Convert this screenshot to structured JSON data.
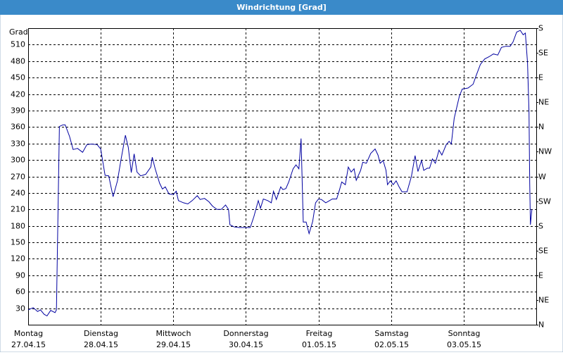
{
  "chart_data": {
    "type": "line",
    "title": "Windrichtung [Grad]",
    "y_label": "Grad",
    "color": "#0000a0",
    "grid": true,
    "x": [
      0,
      0.07,
      0.13,
      0.17,
      0.22,
      0.26,
      0.31,
      0.37,
      0.39,
      0.43,
      0.48,
      0.51,
      0.57,
      0.62,
      0.68,
      0.75,
      0.81,
      0.87,
      0.95,
      1.0,
      1.06,
      1.11,
      1.17,
      1.23,
      1.28,
      1.34,
      1.38,
      1.42,
      1.46,
      1.5,
      1.55,
      1.62,
      1.69,
      1.71,
      1.75,
      1.81,
      1.85,
      1.89,
      1.94,
      2.0,
      2.04,
      2.07,
      2.14,
      2.2,
      2.26,
      2.33,
      2.37,
      2.43,
      2.49,
      2.54,
      2.6,
      2.66,
      2.72,
      2.76,
      2.78,
      2.84,
      2.91,
      3.06,
      3.11,
      3.17,
      3.2,
      3.24,
      3.3,
      3.35,
      3.38,
      3.42,
      3.48,
      3.51,
      3.55,
      3.59,
      3.65,
      3.69,
      3.73,
      3.76,
      3.79,
      3.83,
      3.87,
      3.92,
      3.96,
      4.0,
      4.04,
      4.1,
      4.14,
      4.19,
      4.25,
      4.29,
      4.32,
      4.37,
      4.41,
      4.45,
      4.49,
      4.52,
      4.58,
      4.61,
      4.66,
      4.72,
      4.78,
      4.82,
      4.85,
      4.89,
      4.93,
      4.95,
      4.99,
      5.03,
      5.07,
      5.11,
      5.15,
      5.22,
      5.28,
      5.33,
      5.37,
      5.42,
      5.45,
      5.5,
      5.53,
      5.57,
      5.61,
      5.66,
      5.7,
      5.76,
      5.8,
      5.83,
      5.87,
      5.94,
      5.98,
      6.06,
      6.13,
      6.17,
      6.23,
      6.29,
      6.35,
      6.41,
      6.47,
      6.52,
      6.58,
      6.64,
      6.68,
      6.73,
      6.78,
      6.82,
      6.85,
      6.88,
      6.9,
      6.91,
      6.92,
      6.94
    ],
    "values": [
      27,
      31,
      24,
      27,
      19,
      16,
      26,
      22,
      27,
      361,
      364,
      364,
      343,
      319,
      321,
      314,
      328,
      329,
      328,
      320,
      272,
      271,
      233,
      262,
      301,
      345,
      323,
      277,
      311,
      278,
      271,
      274,
      287,
      305,
      284,
      258,
      247,
      251,
      238,
      237,
      243,
      226,
      222,
      220,
      226,
      235,
      228,
      230,
      224,
      216,
      210,
      210,
      218,
      210,
      182,
      178,
      177,
      177,
      197,
      226,
      212,
      229,
      226,
      222,
      243,
      228,
      251,
      246,
      248,
      260,
      284,
      291,
      284,
      339,
      187,
      187,
      166,
      188,
      222,
      229,
      228,
      222,
      225,
      229,
      229,
      246,
      260,
      255,
      287,
      278,
      284,
      263,
      281,
      296,
      294,
      312,
      320,
      309,
      294,
      299,
      281,
      255,
      262,
      255,
      262,
      251,
      242,
      242,
      270,
      308,
      279,
      299,
      281,
      285,
      285,
      302,
      294,
      318,
      309,
      328,
      334,
      329,
      376,
      416,
      429,
      431,
      438,
      453,
      474,
      484,
      488,
      493,
      491,
      505,
      507,
      507,
      515,
      533,
      536,
      528,
      531,
      477,
      387,
      258,
      182,
      210
    ],
    "xlim": [
      0,
      7
    ],
    "xticks": [
      {
        "value": 0,
        "label": "Montag"
      },
      {
        "value": 1,
        "label": "Dienstag"
      },
      {
        "value": 2,
        "label": "Mittwoch"
      },
      {
        "value": 3,
        "label": "Donnerstag"
      },
      {
        "value": 4,
        "label": "Freitag"
      },
      {
        "value": 5,
        "label": "Samstag"
      },
      {
        "value": 6,
        "label": "Sonntag"
      }
    ],
    "xtick_dates": [
      "27.04.15",
      "28.04.15",
      "29.04.15",
      "30.04.15",
      "01.05.15",
      "02.05.15",
      "03.05.15"
    ],
    "ylim": [
      0,
      540
    ],
    "yticks": [
      30,
      60,
      90,
      120,
      150,
      180,
      210,
      240,
      270,
      300,
      330,
      360,
      390,
      420,
      450,
      480,
      510
    ],
    "y2lim": [
      0,
      540
    ],
    "y2ticks": [
      {
        "value": 0,
        "label": "N"
      },
      {
        "value": 45,
        "label": "NE"
      },
      {
        "value": 90,
        "label": "E"
      },
      {
        "value": 135,
        "label": "SE"
      },
      {
        "value": 180,
        "label": "S"
      },
      {
        "value": 225,
        "label": "SW"
      },
      {
        "value": 270,
        "label": "W"
      },
      {
        "value": 315,
        "label": "NW"
      },
      {
        "value": 360,
        "label": "N"
      },
      {
        "value": 405,
        "label": "NE"
      },
      {
        "value": 450,
        "label": "E"
      },
      {
        "value": 495,
        "label": "SE"
      },
      {
        "value": 540,
        "label": "S"
      }
    ]
  }
}
